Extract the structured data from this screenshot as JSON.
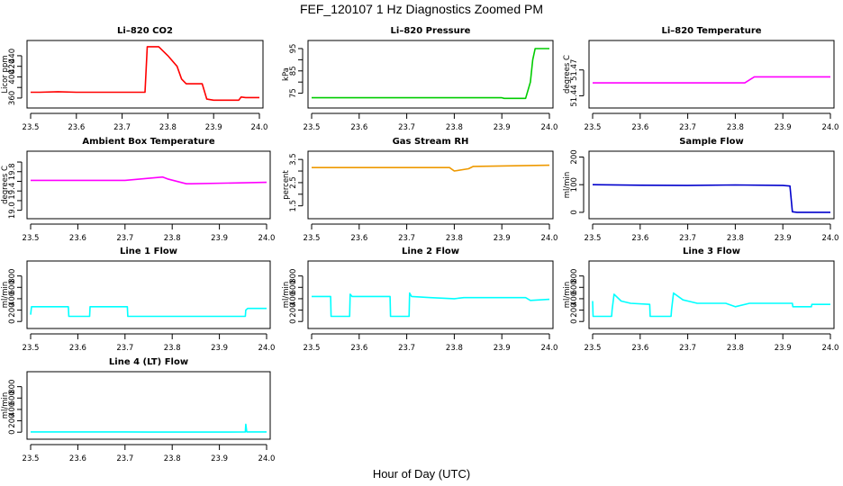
{
  "figure": {
    "title": "FEF_120107  1 Hz Diagnostics Zoomed PM",
    "xlabel": "Hour of Day (UTC)"
  },
  "chart_data": [
    {
      "type": "line",
      "title": "Li–820 CO2",
      "ylabel": "Licor ppm",
      "color": "#ff0000",
      "xlim": [
        23.5,
        24.0
      ],
      "ylim": [
        348,
        462
      ],
      "xticks": [
        23.5,
        23.6,
        23.7,
        23.8,
        23.9,
        24.0
      ],
      "xtick_labels": [
        "23.5",
        "23.6",
        "23.7",
        "23.8",
        "23.9",
        "24.0"
      ],
      "yticks": [
        360,
        380,
        400,
        420,
        440
      ],
      "ytick_labels": [
        "360",
        "",
        "400",
        "420",
        "440"
      ],
      "series": [
        {
          "x": [
            23.5,
            23.52,
            23.56,
            23.6,
            23.65,
            23.7,
            23.75,
            23.755,
            23.78,
            23.8,
            23.82,
            23.83,
            23.84,
            23.86,
            23.875,
            23.885,
            23.9,
            23.93,
            23.955,
            23.96,
            23.97,
            24.0
          ],
          "y": [
            371,
            371,
            372,
            371,
            371,
            371,
            371,
            457,
            457,
            440,
            420,
            396,
            387,
            387,
            387,
            358,
            356,
            356,
            356,
            362,
            361,
            361
          ]
        }
      ]
    },
    {
      "type": "line",
      "title": "Li–820 Pressure",
      "ylabel": "kPa",
      "color": "#00cc00",
      "xlim": [
        23.5,
        24.0
      ],
      "ylim": [
        70,
        97
      ],
      "xticks": [
        23.5,
        23.6,
        23.7,
        23.8,
        23.9,
        24.0
      ],
      "xtick_labels": [
        "23.5",
        "23.6",
        "23.7",
        "23.8",
        "23.9",
        "24.0"
      ],
      "yticks": [
        75,
        80,
        85,
        90,
        95
      ],
      "ytick_labels": [
        "75",
        "",
        "85",
        "",
        "95"
      ],
      "series": [
        {
          "x": [
            23.5,
            23.9,
            23.905,
            23.95,
            23.96,
            23.965,
            23.97,
            23.975,
            24.0
          ],
          "y": [
            73,
            73,
            72.7,
            72.7,
            80,
            90,
            95,
            95,
            95
          ]
        }
      ]
    },
    {
      "type": "line",
      "title": "Li–820 Temperature",
      "ylabel": "degrees C",
      "color": "#ff00ff",
      "xlim": [
        23.5,
        24.0
      ],
      "ylim": [
        51.43,
        51.5
      ],
      "xticks": [
        23.5,
        23.6,
        23.7,
        23.8,
        23.9,
        24.0
      ],
      "xtick_labels": [
        "23.5",
        "23.6",
        "23.7",
        "23.8",
        "23.9",
        "24.0"
      ],
      "yticks": [
        51.44,
        51.47
      ],
      "ytick_labels": [
        "51.44",
        "51.47"
      ],
      "series": [
        {
          "x": [
            23.5,
            23.8,
            23.82,
            23.84,
            24.0
          ],
          "y": [
            51.455,
            51.455,
            51.455,
            51.462,
            51.462
          ]
        }
      ]
    },
    {
      "type": "line",
      "title": "Ambient Box Temperature",
      "ylabel": "degrees C",
      "color": "#ff00ff",
      "xlim": [
        23.5,
        24.0
      ],
      "ylim": [
        18.9,
        20.15
      ],
      "xticks": [
        23.5,
        23.6,
        23.7,
        23.8,
        23.9,
        24.0
      ],
      "xtick_labels": [
        "23.5",
        "23.6",
        "23.7",
        "23.8",
        "23.9",
        "24.0"
      ],
      "yticks": [
        19.0,
        19.2,
        19.4,
        19.6,
        19.8,
        20.0
      ],
      "ytick_labels": [
        "19.0",
        "",
        "19.4",
        "",
        "19.8",
        ""
      ],
      "series": [
        {
          "x": [
            23.5,
            23.7,
            23.78,
            23.79,
            23.83,
            23.84,
            24.0
          ],
          "y": [
            19.62,
            19.62,
            19.69,
            19.65,
            19.55,
            19.55,
            19.58
          ]
        }
      ]
    },
    {
      "type": "line",
      "title": "Gas Stream RH",
      "ylabel": "percent",
      "color": "#ee9900",
      "xlim": [
        23.5,
        24.0
      ],
      "ylim": [
        1.1,
        3.7
      ],
      "xticks": [
        23.5,
        23.6,
        23.7,
        23.8,
        23.9,
        24.0
      ],
      "xtick_labels": [
        "23.5",
        "23.6",
        "23.7",
        "23.8",
        "23.9",
        "24.0"
      ],
      "yticks": [
        1.5,
        2.0,
        2.5,
        3.0,
        3.5
      ],
      "ytick_labels": [
        "1.5",
        "",
        "2.5",
        "",
        "3.5"
      ],
      "series": [
        {
          "x": [
            23.5,
            23.79,
            23.8,
            23.83,
            23.84,
            24.0
          ],
          "y": [
            3.15,
            3.15,
            3.0,
            3.1,
            3.2,
            3.25
          ]
        }
      ]
    },
    {
      "type": "line",
      "title": "Sample Flow",
      "ylabel": "ml/min",
      "color": "#0000cc",
      "xlim": [
        23.5,
        24.0
      ],
      "ylim": [
        -10,
        208
      ],
      "xticks": [
        23.5,
        23.6,
        23.7,
        23.8,
        23.9,
        24.0
      ],
      "xtick_labels": [
        "23.5",
        "23.6",
        "23.7",
        "23.8",
        "23.9",
        "24.0"
      ],
      "yticks": [
        0,
        100,
        200
      ],
      "ytick_labels": [
        "0",
        "100",
        "200"
      ],
      "series": [
        {
          "x": [
            23.5,
            23.6,
            23.7,
            23.8,
            23.9,
            23.915,
            23.92,
            23.93,
            24.0
          ],
          "y": [
            100,
            98,
            97,
            99,
            97,
            95,
            2,
            0,
            0
          ]
        }
      ]
    },
    {
      "type": "line",
      "title": "Line 1 Flow",
      "ylabel": "ml/min",
      "color": "#00ffff",
      "xlim": [
        23.5,
        24.0
      ],
      "ylim": [
        -60,
        1000
      ],
      "xticks": [
        23.5,
        23.6,
        23.7,
        23.8,
        23.9,
        24.0
      ],
      "xtick_labels": [
        "23.5",
        "23.6",
        "23.7",
        "23.8",
        "23.9",
        "24.0"
      ],
      "yticks": [
        0,
        200,
        400,
        600,
        800
      ],
      "ytick_labels": [
        "0",
        "200",
        "400",
        "600",
        "800"
      ],
      "series": [
        {
          "x": [
            23.5,
            23.502,
            23.58,
            23.581,
            23.625,
            23.626,
            23.705,
            23.706,
            23.955,
            23.956,
            23.96,
            24.0
          ],
          "y": [
            120,
            260,
            260,
            90,
            90,
            260,
            260,
            90,
            90,
            200,
            230,
            230
          ]
        }
      ]
    },
    {
      "type": "line",
      "title": "Line 2 Flow",
      "ylabel": "ml/min",
      "color": "#00ffff",
      "xlim": [
        23.5,
        24.0
      ],
      "ylim": [
        -60,
        1000
      ],
      "xticks": [
        23.5,
        23.6,
        23.7,
        23.8,
        23.9,
        24.0
      ],
      "xtick_labels": [
        "23.5",
        "23.6",
        "23.7",
        "23.8",
        "23.9",
        "24.0"
      ],
      "yticks": [
        0,
        200,
        400,
        600,
        800
      ],
      "ytick_labels": [
        "0",
        "200",
        "400",
        "600",
        "800"
      ],
      "series": [
        {
          "x": [
            23.5,
            23.54,
            23.541,
            23.58,
            23.581,
            23.585,
            23.665,
            23.666,
            23.705,
            23.706,
            23.71,
            23.75,
            23.8,
            23.82,
            23.95,
            23.96,
            24.0
          ],
          "y": [
            440,
            440,
            90,
            90,
            480,
            440,
            440,
            90,
            90,
            500,
            440,
            420,
            400,
            420,
            420,
            370,
            390
          ]
        }
      ]
    },
    {
      "type": "line",
      "title": "Line 3 Flow",
      "ylabel": "ml/min",
      "color": "#00ffff",
      "xlim": [
        23.5,
        24.0
      ],
      "ylim": [
        -60,
        1000
      ],
      "xticks": [
        23.5,
        23.6,
        23.7,
        23.8,
        23.9,
        24.0
      ],
      "xtick_labels": [
        "23.5",
        "23.6",
        "23.7",
        "23.8",
        "23.9",
        "24.0"
      ],
      "yticks": [
        0,
        200,
        400,
        600,
        800
      ],
      "ytick_labels": [
        "0",
        "200",
        "400",
        "600",
        "800"
      ],
      "series": [
        {
          "x": [
            23.5,
            23.501,
            23.502,
            23.54,
            23.541,
            23.545,
            23.56,
            23.58,
            23.62,
            23.621,
            23.665,
            23.666,
            23.67,
            23.69,
            23.72,
            23.78,
            23.8,
            23.83,
            23.92,
            23.921,
            23.96,
            23.961,
            24.0
          ],
          "y": [
            360,
            90,
            90,
            90,
            200,
            480,
            360,
            320,
            300,
            90,
            90,
            200,
            500,
            380,
            320,
            320,
            260,
            320,
            320,
            260,
            260,
            300,
            300
          ]
        }
      ]
    },
    {
      "type": "line",
      "title": "Line 4 (LT) Flow",
      "ylabel": "ml/min",
      "color": "#00ffff",
      "xlim": [
        23.5,
        24.0
      ],
      "ylim": [
        -60,
        1000
      ],
      "xticks": [
        23.5,
        23.6,
        23.7,
        23.8,
        23.9,
        24.0
      ],
      "xtick_labels": [
        "23.5",
        "23.6",
        "23.7",
        "23.8",
        "23.9",
        "24.0"
      ],
      "yticks": [
        0,
        200,
        400,
        600,
        800
      ],
      "ytick_labels": [
        "0",
        "200",
        "400",
        "600",
        "800"
      ],
      "series": [
        {
          "x": [
            23.5,
            23.7,
            23.75,
            23.9,
            23.955,
            23.956,
            23.958,
            23.96,
            24.0
          ],
          "y": [
            5,
            5,
            2,
            2,
            5,
            140,
            5,
            5,
            5
          ]
        }
      ]
    }
  ]
}
